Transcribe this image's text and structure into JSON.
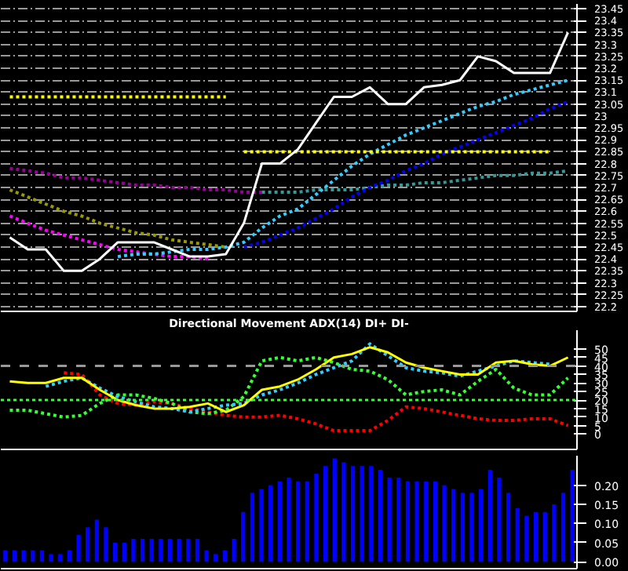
{
  "chart_data": [
    {
      "type": "line",
      "categories": [
        null,
        null,
        null,
        null,
        null,
        null,
        null,
        null,
        null,
        null,
        null,
        null,
        null,
        null,
        null,
        null,
        null,
        null,
        null,
        null,
        null,
        null,
        null,
        null,
        null,
        null,
        null,
        null,
        null,
        null,
        null,
        null
      ],
      "ylim": [
        22.18,
        23.47
      ],
      "yticks": [
        22.2,
        22.25,
        22.3,
        22.35,
        22.4,
        22.45,
        22.5,
        22.55,
        22.6,
        22.65,
        22.7,
        22.75,
        22.8,
        22.85,
        22.9,
        22.95,
        23.0,
        23.05,
        23.1,
        23.15,
        23.2,
        23.25,
        23.3,
        23.35,
        23.4,
        23.45
      ],
      "grid": "y",
      "series": [
        {
          "color": "#ff00ff",
          "line_style": "dotted",
          "values": [
            22.58,
            22.55,
            22.52,
            22.5,
            22.48,
            22.46,
            22.44,
            22.43,
            22.42,
            22.41,
            22.41,
            22.4,
            null,
            null,
            null,
            null,
            null,
            null,
            null,
            null,
            null,
            null,
            null,
            null,
            null,
            null,
            null,
            null,
            null,
            null,
            null,
            null
          ]
        },
        {
          "color": "#999900",
          "line_style": "dotted",
          "values": [
            22.69,
            22.66,
            22.63,
            22.6,
            22.58,
            22.55,
            22.53,
            22.51,
            22.5,
            22.48,
            22.47,
            22.46,
            22.45,
            null,
            null,
            null,
            null,
            null,
            null,
            null,
            null,
            null,
            null,
            null,
            null,
            null,
            null,
            null,
            null,
            null,
            null,
            null
          ]
        },
        {
          "color": "#990099",
          "line_style": "dotted",
          "values": [
            22.78,
            22.77,
            22.76,
            22.74,
            22.74,
            22.73,
            22.72,
            22.71,
            22.71,
            22.7,
            22.7,
            22.69,
            22.69,
            22.68,
            22.68,
            null,
            null,
            null,
            null,
            null,
            null,
            null,
            null,
            null,
            null,
            null,
            null,
            null,
            null,
            null,
            null,
            null
          ]
        },
        {
          "color": "#339999",
          "line_style": "dotted",
          "values": [
            null,
            null,
            null,
            null,
            null,
            null,
            null,
            null,
            null,
            null,
            null,
            null,
            null,
            null,
            22.68,
            22.68,
            22.68,
            22.69,
            22.69,
            22.69,
            22.7,
            22.71,
            22.71,
            22.72,
            22.72,
            22.73,
            22.74,
            22.75,
            22.75,
            22.76,
            22.76,
            22.77
          ]
        },
        {
          "color": "#33ccff",
          "line_style": "dotted",
          "values": [
            null,
            null,
            null,
            null,
            null,
            null,
            22.41,
            22.42,
            22.42,
            22.43,
            22.44,
            22.44,
            22.45,
            22.47,
            22.53,
            22.58,
            22.61,
            22.67,
            22.73,
            22.79,
            22.84,
            22.88,
            22.92,
            22.95,
            22.98,
            23.01,
            23.04,
            23.06,
            23.09,
            23.11,
            23.13,
            23.15
          ]
        },
        {
          "color": "#0000ff",
          "line_style": "dotted",
          "values": [
            null,
            null,
            null,
            null,
            null,
            null,
            null,
            null,
            null,
            null,
            null,
            null,
            null,
            22.45,
            22.47,
            22.5,
            22.53,
            22.57,
            22.61,
            22.66,
            22.7,
            22.73,
            22.77,
            22.8,
            22.84,
            22.87,
            22.9,
            22.93,
            22.96,
            22.99,
            23.03,
            23.06
          ]
        },
        {
          "color": "#ffff00",
          "line_style": "dotted",
          "values": [
            23.08,
            23.08,
            23.08,
            23.08,
            23.08,
            23.08,
            23.08,
            23.08,
            23.08,
            23.08,
            23.08,
            23.08,
            23.08,
            null,
            null,
            null,
            null,
            null,
            null,
            null,
            null,
            null,
            null,
            null,
            null,
            null,
            null,
            null,
            null,
            null,
            null,
            null
          ]
        },
        {
          "color": "#ffff00",
          "line_style": "dotted",
          "values": [
            null,
            null,
            null,
            null,
            null,
            null,
            null,
            null,
            null,
            null,
            null,
            null,
            null,
            22.85,
            22.85,
            22.85,
            22.85,
            22.85,
            22.85,
            22.85,
            22.85,
            22.85,
            22.85,
            22.85,
            22.85,
            22.85,
            22.85,
            22.85,
            22.85,
            22.85,
            22.85,
            null
          ]
        },
        {
          "color": "#ffffff",
          "line_style": "solid",
          "values": [
            22.49,
            22.44,
            22.44,
            22.35,
            22.35,
            22.4,
            22.47,
            22.47,
            22.47,
            22.44,
            22.41,
            22.41,
            22.42,
            22.55,
            22.8,
            22.8,
            22.86,
            22.97,
            23.08,
            23.08,
            23.12,
            23.05,
            23.05,
            23.12,
            23.13,
            23.15,
            23.25,
            23.23,
            23.18,
            23.18,
            23.18,
            23.35
          ]
        }
      ]
    },
    {
      "type": "line",
      "title": "Directional Movement ADX(14) DI+ DI-",
      "categories": [
        null,
        null,
        null,
        null,
        null,
        null,
        null,
        null,
        null,
        null,
        null,
        null,
        null,
        null,
        null,
        null,
        null,
        null,
        null,
        null,
        null,
        null,
        null,
        null,
        null,
        null,
        null,
        null,
        null,
        null,
        null,
        null
      ],
      "ylim": [
        -9,
        61
      ],
      "yticks": [
        0,
        5,
        10,
        15,
        20,
        25,
        30,
        35,
        40,
        45,
        50
      ],
      "ref_lines": [
        {
          "axis": "y",
          "value": 40,
          "color": "#999999",
          "line_style": "dashed"
        },
        {
          "axis": "y",
          "value": 20,
          "color": "#33ff33",
          "line_style": "dotted"
        }
      ],
      "series": [
        {
          "color": "#ff0000",
          "line_style": "dotted",
          "values": [
            null,
            null,
            null,
            36,
            35,
            23,
            18,
            17,
            19,
            18,
            15,
            13,
            11,
            10,
            10,
            11,
            9,
            6,
            2,
            2,
            2,
            8,
            16,
            15,
            13,
            11,
            9,
            8,
            8,
            9,
            9,
            5
          ]
        },
        {
          "color": "#33ff33",
          "line_style": "dotted",
          "values": [
            14,
            14,
            12,
            10,
            11,
            18,
            23,
            23,
            21,
            18,
            13,
            12,
            14,
            22,
            43,
            45,
            43,
            45,
            42,
            38,
            37,
            32,
            23,
            25,
            26,
            23,
            31,
            38,
            27,
            23,
            23,
            33
          ]
        },
        {
          "color": "#33ccff",
          "line_style": "dotted",
          "values": [
            null,
            null,
            28,
            31,
            33,
            27,
            22,
            19,
            16,
            15,
            13,
            15,
            17,
            18,
            23,
            26,
            30,
            35,
            39,
            43,
            53,
            46,
            39,
            37,
            36,
            34,
            37,
            40,
            43,
            42,
            41,
            null
          ]
        },
        {
          "color": "#ffff00",
          "line_style": "solid",
          "values": [
            31,
            30,
            30,
            33,
            33,
            26,
            20,
            17,
            15,
            15,
            16,
            18,
            13,
            17,
            26,
            28,
            32,
            38,
            45,
            47,
            51,
            48,
            42,
            39,
            37,
            35,
            35,
            42,
            43,
            41,
            40,
            45
          ]
        }
      ]
    },
    {
      "type": "bar",
      "categories": [
        null,
        null,
        null,
        null,
        null,
        null,
        null,
        null,
        null,
        null,
        null,
        null,
        null,
        null,
        null,
        null,
        null,
        null,
        null,
        null,
        null,
        null,
        null,
        null,
        null,
        null,
        null,
        null,
        null,
        null,
        null,
        null,
        null,
        null,
        null,
        null,
        null,
        null,
        null,
        null,
        null,
        null,
        null,
        null,
        null,
        null,
        null,
        null,
        null,
        null,
        null,
        null,
        null,
        null,
        null,
        null,
        null,
        null,
        null,
        null,
        null,
        null,
        null
      ],
      "ylim": [
        -0.018,
        0.277
      ],
      "yticks": [
        {
          "value": 0,
          "label": "0.00"
        },
        {
          "value": 0.05,
          "label": "0.05"
        },
        {
          "value": 0.1,
          "label": "0.10"
        },
        {
          "value": 0.15,
          "label": "0.15"
        },
        {
          "value": 0.2,
          "label": "0.20"
        }
      ],
      "color": "#0000ff",
      "values": [
        0.03,
        0.03,
        0.03,
        0.03,
        0.03,
        0.02,
        0.02,
        0.03,
        0.07,
        0.09,
        0.11,
        0.09,
        0.05,
        0.05,
        0.06,
        0.06,
        0.06,
        0.06,
        0.06,
        0.06,
        0.06,
        0.06,
        0.03,
        0.02,
        0.03,
        0.06,
        0.13,
        0.18,
        0.19,
        0.2,
        0.21,
        0.22,
        0.21,
        0.21,
        0.23,
        0.25,
        0.27,
        0.26,
        0.25,
        0.25,
        0.25,
        0.24,
        0.22,
        0.22,
        0.21,
        0.21,
        0.21,
        0.21,
        0.2,
        0.19,
        0.18,
        0.18,
        0.19,
        0.24,
        0.22,
        0.18,
        0.14,
        0.12,
        0.13,
        0.13,
        0.15,
        0.18,
        0.24
      ]
    }
  ]
}
